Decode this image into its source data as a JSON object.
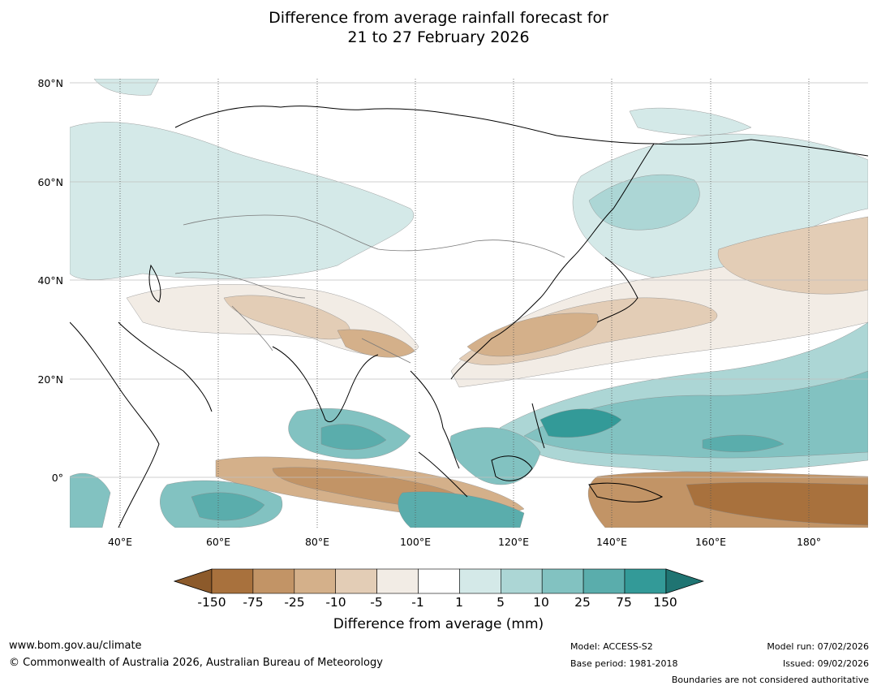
{
  "title": {
    "line1": "Difference from average rainfall forecast for",
    "line2": "21 to 27 February 2026"
  },
  "map": {
    "lat_ticks": [
      "80°N",
      "60°N",
      "40°N",
      "20°N",
      "0°"
    ],
    "lon_ticks": [
      "40°E",
      "60°E",
      "80°E",
      "100°E",
      "120°E",
      "140°E",
      "160°E",
      "180°"
    ]
  },
  "colorbar": {
    "title": "Difference from average (mm)",
    "labels": [
      "-150",
      "-75",
      "-25",
      "-10",
      "-5",
      "-1",
      "1",
      "5",
      "10",
      "25",
      "75",
      "150"
    ],
    "colors": [
      "#8c5a2b",
      "#a8713d",
      "#c29466",
      "#d4b08a",
      "#e3cdb6",
      "#f2ece5",
      "#ffffff",
      "#d4e9e8",
      "#acd6d5",
      "#82c2c1",
      "#5aadac",
      "#339a98",
      "#1f7472"
    ]
  },
  "footer": {
    "website": "www.bom.gov.au/climate",
    "copyright": "© Commonwealth of Australia 2026, Australian Bureau of Meteorology",
    "model": "Model: ACCESS-S2",
    "base_period": "Base period: 1981-2018",
    "model_run": "Model run: 07/02/2026",
    "issued": "Issued: 09/02/2026",
    "disclaimer": "Boundaries are not considered authoritative"
  }
}
